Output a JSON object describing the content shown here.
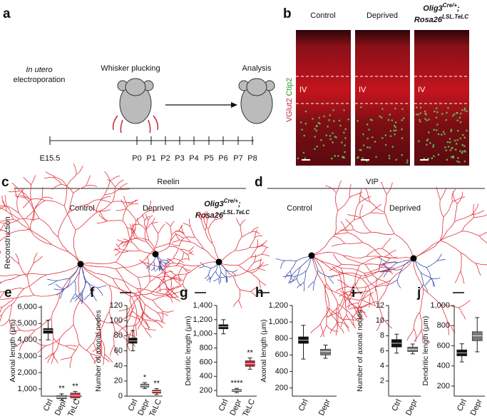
{
  "panel_labels": [
    "a",
    "b",
    "c",
    "d",
    "e",
    "f",
    "g",
    "h",
    "i",
    "j"
  ],
  "timeline": {
    "intro": "In utero",
    "intro_rest": "electroporation",
    "plucking": "Whisker plucking",
    "analysis": "Analysis",
    "ticks": [
      "E15.5",
      "P0",
      "P1",
      "P2",
      "P3",
      "P4",
      "P5",
      "P6",
      "P7",
      "P8"
    ]
  },
  "genotype": {
    "gene1": "Olig3",
    "sup1": "Cre/+",
    "sep": ";",
    "gene2": "Rosa26",
    "sup2": "LSL.TeLC"
  },
  "micrographs": {
    "columns": [
      "Control",
      "Deprived"
    ],
    "layer": "IV",
    "stain1": "VGlut2",
    "stain2": "Ctip2"
  },
  "reconstruction": {
    "row_label": "Reconstruction",
    "reelin": {
      "title": "Reelin",
      "columns": [
        "Control",
        "Deprived"
      ]
    },
    "vip": {
      "title": "VIP",
      "columns": [
        "Control",
        "Deprived"
      ]
    }
  },
  "chart_data": [
    {
      "type": "box",
      "ylabel": "Axonal length (μm)",
      "categories": [
        "Ctrl",
        "Depr",
        "TeLC"
      ],
      "colors": [
        "#111111",
        "#777777",
        "#c0283a"
      ],
      "boxes": [
        {
          "min": 4000,
          "q1": 4400,
          "median": 4600,
          "q3": 4700,
          "max": 5200
        },
        {
          "min": 300,
          "q1": 400,
          "median": 500,
          "q3": 600,
          "max": 700
        },
        {
          "min": 350,
          "q1": 450,
          "median": 600,
          "q3": 750,
          "max": 850
        }
      ],
      "annotations": [
        null,
        "**",
        "**"
      ],
      "ylim": [
        560,
        6100
      ],
      "yticks": [
        {
          "value": 1000,
          "label": "1,000"
        },
        {
          "value": 2000,
          "label": "2,000"
        },
        {
          "value": 3000,
          "label": "3,000"
        },
        {
          "value": 4000,
          "label": "4,000"
        },
        {
          "value": 5000,
          "label": "5,000"
        },
        {
          "value": 6000,
          "label": "6,000"
        }
      ]
    },
    {
      "type": "box",
      "ylabel": "Number of axonal nodes",
      "categories": [
        "Ctrl",
        "Depr",
        "TeLC"
      ],
      "colors": [
        "#111111",
        "#777777",
        "#c0283a"
      ],
      "boxes": [
        {
          "min": 60,
          "q1": 70,
          "median": 73,
          "q3": 77,
          "max": 87
        },
        {
          "min": 10,
          "q1": 12,
          "median": 14,
          "q3": 16,
          "max": 18
        },
        {
          "min": 2,
          "q1": 4,
          "median": 6,
          "q3": 8,
          "max": 10
        }
      ],
      "annotations": [
        null,
        "*",
        "**"
      ],
      "ylim": [
        0,
        120
      ],
      "yticks": [
        0,
        20,
        40,
        60,
        80,
        100,
        120
      ]
    },
    {
      "type": "box",
      "ylabel": "Dendritic length (μm)",
      "categories": [
        "Ctrl",
        "Depr",
        "TeLC"
      ],
      "colors": [
        "#111111",
        "#777777",
        "#c0283a"
      ],
      "boxes": [
        {
          "min": 1000,
          "q1": 1070,
          "median": 1100,
          "q3": 1130,
          "max": 1200
        },
        {
          "min": 170,
          "q1": 185,
          "median": 200,
          "q3": 215,
          "max": 230
        },
        {
          "min": 500,
          "q1": 540,
          "median": 580,
          "q3": 620,
          "max": 660
        }
      ],
      "annotations": [
        null,
        "****",
        "**"
      ],
      "ylim": [
        120,
        1400
      ],
      "yticks": [
        200,
        400,
        600,
        800,
        {
          "value": 1000,
          "label": "1,000"
        },
        {
          "value": 1200,
          "label": "1,200"
        },
        {
          "value": 1400,
          "label": "1,400"
        }
      ]
    },
    {
      "type": "box",
      "ylabel": "Axonal length (μm)",
      "categories": [
        "Ctrl",
        "Depr"
      ],
      "colors": [
        "#111111",
        "#777777"
      ],
      "boxes": [
        {
          "min": 550,
          "q1": 740,
          "median": 780,
          "q3": 820,
          "max": 960
        },
        {
          "min": 560,
          "q1": 600,
          "median": 640,
          "q3": 670,
          "max": 720
        }
      ],
      "annotations": [
        null,
        null
      ],
      "ylim": [
        100,
        1200
      ],
      "yticks": [
        200,
        400,
        600,
        800,
        {
          "value": 1000,
          "label": "1,000"
        },
        {
          "value": 1200,
          "label": "1,200"
        }
      ]
    },
    {
      "type": "box",
      "ylabel": "Number of axonal nodes",
      "categories": [
        "Ctrl",
        "Depr"
      ],
      "colors": [
        "#111111",
        "#777777"
      ],
      "boxes": [
        {
          "min": 5.7,
          "q1": 6.5,
          "median": 7,
          "q3": 7.5,
          "max": 8.2
        },
        {
          "min": 5.6,
          "q1": 5.9,
          "median": 6.2,
          "q3": 6.5,
          "max": 6.9
        }
      ],
      "annotations": [
        null,
        null
      ],
      "ylim": [
        0,
        12
      ],
      "yticks": [
        2,
        4,
        6,
        8,
        10,
        12
      ]
    },
    {
      "type": "box",
      "ylabel": "Dendritic length (μm)",
      "categories": [
        "Ctrl",
        "Depr"
      ],
      "colors": [
        "#111111",
        "#777777"
      ],
      "boxes": [
        {
          "min": 440,
          "q1": 500,
          "median": 530,
          "q3": 560,
          "max": 620
        },
        {
          "min": 540,
          "q1": 650,
          "median": 700,
          "q3": 740,
          "max": 880
        }
      ],
      "annotations": [
        null,
        null
      ],
      "ylim": [
        100,
        1000
      ],
      "yticks": [
        200,
        400,
        600,
        800,
        {
          "value": 1000,
          "label": "1,000"
        }
      ]
    }
  ]
}
